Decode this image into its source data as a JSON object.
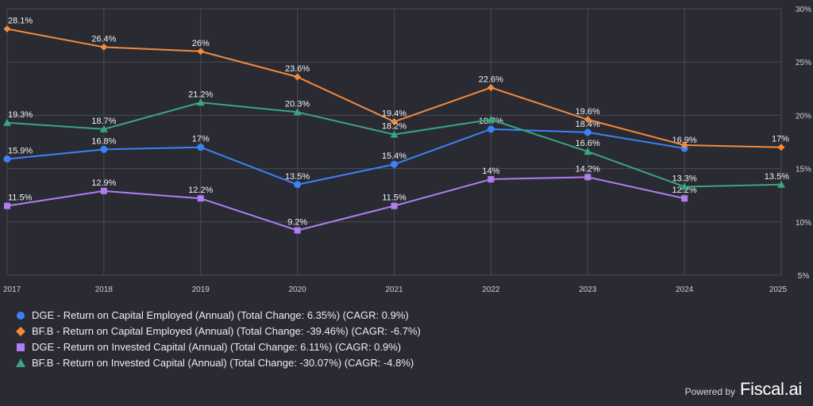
{
  "chart_data": {
    "type": "line",
    "categories": [
      "2017",
      "2018",
      "2019",
      "2020",
      "2021",
      "2022",
      "2023",
      "2024",
      "2025"
    ],
    "ylim": [
      5,
      30
    ],
    "yticks": [
      5,
      10,
      15,
      20,
      25,
      30
    ],
    "ytick_labels": [
      "5%",
      "10%",
      "15%",
      "20%",
      "25%",
      "30%"
    ],
    "series": [
      {
        "name": "DGE - Return on Capital Employed (Annual) (Total Change: 6.35%) (CAGR: 0.9%)",
        "color": "#3b82f6",
        "marker": "circle",
        "values": [
          15.9,
          16.8,
          17.0,
          13.5,
          15.4,
          18.7,
          18.4,
          16.9,
          null
        ],
        "labels": [
          "15.9%",
          "16.8%",
          "17%",
          "13.5%",
          "15.4%",
          "18.7%",
          "18.4%",
          "16.9%",
          null
        ]
      },
      {
        "name": "BF.B - Return on Capital Employed (Annual) (Total Change: -39.46%) (CAGR: -6.7%)",
        "color": "#f28a3c",
        "marker": "diamond",
        "values": [
          28.1,
          26.4,
          26.0,
          23.6,
          19.4,
          22.6,
          19.6,
          17.2,
          17.0
        ],
        "labels": [
          "28.1%",
          "26.4%",
          "26%",
          "23.6%",
          "19.4%",
          "22.6%",
          "19.6%",
          null,
          "17%"
        ]
      },
      {
        "name": "DGE - Return on Invested Capital (Annual) (Total Change: 6.11%) (CAGR: 0.9%)",
        "color": "#b07ef0",
        "marker": "square",
        "values": [
          11.5,
          12.9,
          12.2,
          9.2,
          11.5,
          14.0,
          14.2,
          12.2,
          null
        ],
        "labels": [
          "11.5%",
          "12.9%",
          "12.2%",
          "9.2%",
          "11.5%",
          "14%",
          "14.2%",
          "12.2%",
          null
        ]
      },
      {
        "name": "BF.B - Return on Invested Capital (Annual) (Total Change: -30.07%) (CAGR: -4.8%)",
        "color": "#3aa57f",
        "marker": "triangle",
        "values": [
          19.3,
          18.7,
          21.2,
          20.3,
          18.2,
          19.6,
          16.6,
          13.3,
          13.5
        ],
        "labels": [
          "19.3%",
          "18.7%",
          "21.2%",
          "20.3%",
          "18.2%",
          null,
          "16.6%",
          "13.3%",
          "13.5%"
        ]
      }
    ]
  },
  "brand": {
    "powered_by": "Powered by",
    "name": "Fiscal.ai"
  }
}
